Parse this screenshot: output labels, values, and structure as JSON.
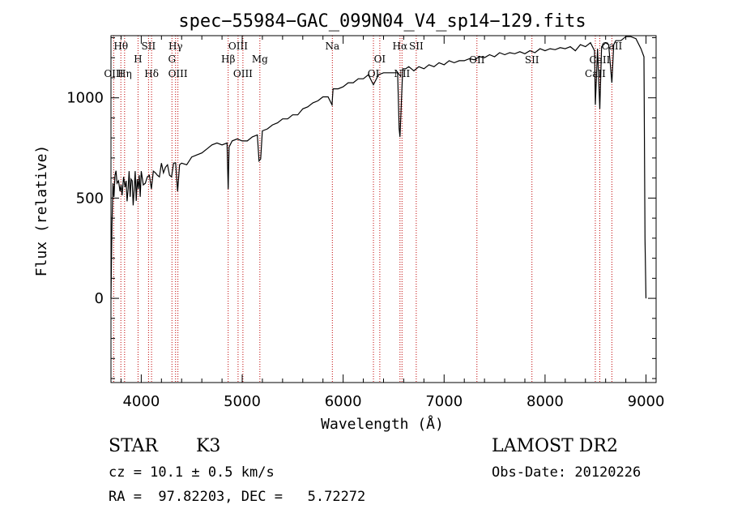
{
  "chart_data": {
    "type": "line",
    "title": "spec−55984−GAC_099N04_V4_sp14−129.fits",
    "xlabel": "Wavelength (Å)",
    "ylabel": "Flux (relative)",
    "xlim": [
      3700,
      9100
    ],
    "ylim": [
      -420,
      1310
    ],
    "xticks": [
      4000,
      5000,
      6000,
      7000,
      8000,
      9000
    ],
    "yticks": [
      0,
      500,
      1000
    ],
    "grid": false,
    "line_color": "#000000",
    "marker_color": "#c00000",
    "series": [
      {
        "x": [
          3700,
          3710,
          3720,
          3730,
          3740,
          3750,
          3760,
          3775,
          3790,
          3800,
          3810,
          3825,
          3840,
          3850,
          3860,
          3870,
          3880,
          3890,
          3900,
          3910,
          3920,
          3930,
          3940,
          3950,
          3960,
          3970,
          3980,
          3990,
          4000,
          4020,
          4040,
          4060,
          4080,
          4100,
          4120,
          4140,
          4160,
          4180,
          4200,
          4220,
          4240,
          4260,
          4280,
          4300,
          4320,
          4340,
          4360,
          4380,
          4400,
          4450,
          4500,
          4550,
          4600,
          4650,
          4700,
          4750,
          4800,
          4850,
          4861,
          4870,
          4900,
          4950,
          5000,
          5050,
          5100,
          5150,
          5167,
          5183,
          5200,
          5250,
          5300,
          5350,
          5400,
          5450,
          5500,
          5550,
          5600,
          5650,
          5700,
          5750,
          5800,
          5850,
          5890,
          5900,
          5950,
          6000,
          6050,
          6100,
          6150,
          6200,
          6250,
          6300,
          6350,
          6400,
          6450,
          6500,
          6540,
          6555,
          6563,
          6570,
          6590,
          6620,
          6650,
          6700,
          6750,
          6800,
          6850,
          6900,
          6950,
          7000,
          7050,
          7100,
          7150,
          7200,
          7250,
          7300,
          7350,
          7400,
          7450,
          7500,
          7550,
          7600,
          7650,
          7700,
          7750,
          7800,
          7850,
          7900,
          7950,
          8000,
          8050,
          8100,
          8150,
          8200,
          8250,
          8300,
          8350,
          8400,
          8450,
          8490,
          8498,
          8520,
          8542,
          8560,
          8600,
          8630,
          8662,
          8680,
          8700,
          8750,
          8800,
          8850,
          8900,
          8950,
          8980,
          8990,
          9000
        ],
        "y": [
          0,
          380,
          560,
          520,
          600,
          650,
          560,
          600,
          520,
          580,
          500,
          620,
          540,
          600,
          470,
          560,
          620,
          520,
          580,
          600,
          450,
          560,
          620,
          500,
          580,
          560,
          600,
          520,
          620,
          580,
          560,
          620,
          600,
          560,
          620,
          640,
          600,
          620,
          660,
          640,
          640,
          680,
          600,
          620,
          660,
          690,
          520,
          680,
          660,
          680,
          700,
          720,
          720,
          750,
          760,
          780,
          760,
          780,
          540,
          760,
          780,
          800,
          780,
          790,
          800,
          820,
          680,
          700,
          830,
          850,
          860,
          880,
          890,
          900,
          910,
          920,
          940,
          960,
          970,
          990,
          1000,
          1010,
          960,
          1050,
          1040,
          1060,
          1070,
          1080,
          1090,
          1100,
          1110,
          1070,
          1110,
          1130,
          1120,
          1130,
          1120,
          850,
          800,
          900,
          1140,
          1150,
          1150,
          1140,
          1150,
          1150,
          1160,
          1160,
          1170,
          1170,
          1180,
          1180,
          1180,
          1190,
          1190,
          1195,
          1200,
          1205,
          1210,
          1210,
          1220,
          1220,
          1220,
          1225,
          1225,
          1225,
          1230,
          1230,
          1240,
          1240,
          1240,
          1245,
          1245,
          1250,
          1250,
          1240,
          1260,
          1260,
          1270,
          1240,
          960,
          1250,
          940,
          1260,
          1270,
          1270,
          1070,
          1270,
          1280,
          1290,
          1300,
          1310,
          1290,
          1250,
          1200,
          300,
          0
        ]
      }
    ],
    "lines": [
      {
        "label": "OIII",
        "x": 3727,
        "row": 3
      },
      {
        "label": "Hθ",
        "x": 3798,
        "row": 0
      },
      {
        "label": "Hη",
        "x": 3835,
        "row": 3
      },
      {
        "label": "SII",
        "x": 4072,
        "row": 0
      },
      {
        "label": "H",
        "x": 3968,
        "row": 1
      },
      {
        "label": "Hδ",
        "x": 4102,
        "row": 3
      },
      {
        "label": "Hγ",
        "x": 4340,
        "row": 0
      },
      {
        "label": "G",
        "x": 4304,
        "row": 1
      },
      {
        "label": "OIII",
        "x": 4363,
        "row": 3
      },
      {
        "label": "OIII",
        "x": 4959,
        "row": 0
      },
      {
        "label": "Hβ",
        "x": 4861,
        "row": 1
      },
      {
        "label": "Mg",
        "x": 5175,
        "row": 1
      },
      {
        "label": "OIII",
        "x": 5007,
        "row": 3
      },
      {
        "label": "Na",
        "x": 5893,
        "row": 0
      },
      {
        "label": "OI",
        "x": 6363,
        "row": 1
      },
      {
        "label": "OI",
        "x": 6300,
        "row": 3
      },
      {
        "label": "Hα",
        "x": 6563,
        "row": 0
      },
      {
        "label": "SII",
        "x": 6724,
        "row": 0
      },
      {
        "label": "NII",
        "x": 6583,
        "row": 3
      },
      {
        "label": "OII",
        "x": 7325,
        "row": 2
      },
      {
        "label": "SII",
        "x": 7870,
        "row": 2
      },
      {
        "label": "CaII",
        "x": 8662,
        "row": 0
      },
      {
        "label": "CaII",
        "x": 8542,
        "row": 2
      },
      {
        "label": "CaII",
        "x": 8498,
        "row": 3
      }
    ]
  },
  "info": {
    "class_type": "STAR",
    "subclass": "K3",
    "survey": "LAMOST DR2",
    "cz": "cz = 10.1 ± 0.5 km/s",
    "obs_date": "Obs-Date: 20120226",
    "radec": "RA =  97.82203, DEC =   5.72272"
  }
}
